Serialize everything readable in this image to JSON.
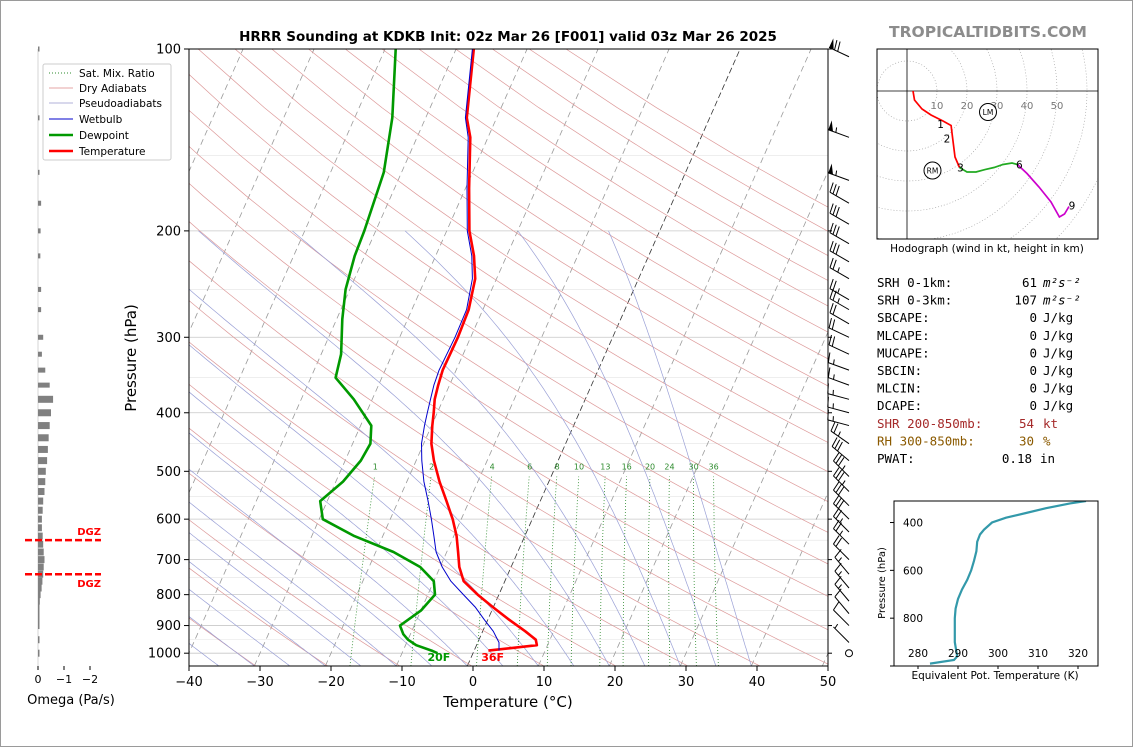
{
  "header": {
    "title": "HRRR Sounding at KDKB Init: 02z Mar 26 [F001] valid 03z Mar 26 2025",
    "brand": "TROPICALTIDBITS.COM"
  },
  "colors": {
    "temperature": "#ff0000",
    "dewpoint": "#009900",
    "wetbulb": "#0000cc",
    "dgz": "#ff0000",
    "thetae": "#3399aa",
    "brand": "#8c8c8c",
    "shr": "#a52a2a",
    "rh": "#8b5a00"
  },
  "chart_data": [
    {
      "type": "line",
      "name": "skewt",
      "title": "HRRR Sounding at KDKB Init: 02z Mar 26 [F001] valid 03z Mar 26 2025",
      "xlabel": "Temperature (°C)",
      "ylabel": "Pressure (hPa)",
      "xlim": [
        -40,
        50
      ],
      "ylim": [
        1050,
        100
      ],
      "y_scale": "log",
      "x_ticks": [
        -40,
        -30,
        -20,
        -10,
        0,
        10,
        20,
        30,
        40,
        50
      ],
      "y_ticks": [
        100,
        200,
        300,
        400,
        500,
        600,
        700,
        800,
        900,
        1000
      ],
      "grid": true,
      "legend_position": "top-left",
      "legend": [
        "Sat. Mix. Ratio",
        "Dry Adiabats",
        "Pseudoadiabats",
        "Wetbulb",
        "Dewpoint",
        "Temperature"
      ],
      "mixing_ratio_labels": [
        "1",
        "2",
        "4",
        "6",
        "8",
        "10",
        "13",
        "16",
        "20",
        "24",
        "30",
        "36"
      ],
      "surface_labels": {
        "temperature": "36F",
        "dewpoint": "20F"
      },
      "series": [
        {
          "name": "Temperature",
          "p": [
            990,
            970,
            950,
            920,
            880,
            840,
            800,
            760,
            720,
            680,
            640,
            600,
            560,
            520,
            480,
            450,
            420,
            400,
            380,
            360,
            340,
            300,
            270,
            240,
            220,
            200,
            170,
            140,
            130,
            100
          ],
          "t": [
            2,
            8.5,
            8,
            6,
            3,
            0,
            -3,
            -5.8,
            -7.3,
            -8.4,
            -9.6,
            -11.2,
            -13.2,
            -15.4,
            -17.5,
            -18.9,
            -19.9,
            -20.5,
            -21.2,
            -21.6,
            -21.9,
            -21.8,
            -22,
            -23,
            -24.6,
            -26.8,
            -29.5,
            -32.5,
            -34.2,
            -37.5
          ]
        },
        {
          "name": "Dewpoint",
          "p": [
            1000,
            990,
            970,
            950,
            930,
            900,
            850,
            800,
            760,
            720,
            680,
            640,
            600,
            560,
            520,
            480,
            450,
            420,
            380,
            350,
            320,
            280,
            250,
            220,
            200,
            160,
            130,
            100
          ],
          "t": [
            -5,
            -6,
            -8.5,
            -10,
            -11,
            -12,
            -10,
            -9,
            -10,
            -12.8,
            -17.5,
            -24,
            -29.5,
            -31,
            -29,
            -27.8,
            -27.5,
            -28.5,
            -32.6,
            -36.5,
            -37.2,
            -39.2,
            -40.6,
            -41.4,
            -41.6,
            -42.5,
            -44.7,
            -48.5
          ]
        },
        {
          "name": "Wetbulb",
          "p": [
            990,
            960,
            920,
            880,
            840,
            800,
            760,
            720,
            680,
            640,
            600,
            560,
            520,
            480,
            450,
            420,
            400,
            380,
            360,
            340,
            300,
            270,
            240,
            220,
            200,
            170,
            140,
            130,
            100
          ],
          "t": [
            3.5,
            3,
            1.5,
            -0.5,
            -2.5,
            -5,
            -7.6,
            -9.7,
            -11.5,
            -12.8,
            -14.2,
            -15.8,
            -17.6,
            -19.2,
            -20.3,
            -21,
            -21.4,
            -21.8,
            -22.2,
            -22.4,
            -22.2,
            -22.3,
            -23.4,
            -24.9,
            -27.1,
            -29.8,
            -32.8,
            -34.4,
            -37.7
          ]
        }
      ]
    },
    {
      "type": "bar",
      "name": "omega",
      "xlabel": "Omega (Pa/s)",
      "x_ticks": [
        0,
        -1,
        -2
      ],
      "xlim": [
        0.5,
        -2.5
      ],
      "dgz_label": "DGZ",
      "dgz_levels_hpa": [
        650,
        740
      ],
      "p": [
        100,
        130,
        160,
        180,
        200,
        220,
        250,
        270,
        300,
        320,
        340,
        360,
        380,
        400,
        420,
        440,
        460,
        480,
        500,
        520,
        540,
        560,
        580,
        600,
        620,
        640,
        660,
        680,
        700,
        720,
        740,
        760,
        780,
        800,
        820,
        840,
        860,
        880,
        900,
        950,
        1000
      ],
      "values": [
        -0.02,
        -0.02,
        -0.05,
        -0.12,
        -0.1,
        -0.09,
        -0.12,
        -0.12,
        -0.2,
        -0.15,
        -0.28,
        -0.45,
        -0.58,
        -0.5,
        -0.45,
        -0.41,
        -0.38,
        -0.35,
        -0.3,
        -0.28,
        -0.25,
        -0.2,
        -0.18,
        -0.15,
        -0.15,
        -0.18,
        -0.2,
        -0.22,
        -0.25,
        -0.22,
        -0.2,
        -0.17,
        -0.14,
        -0.1,
        -0.07,
        -0.05,
        -0.03,
        -0.02,
        -0.02,
        -0.05,
        -0.02
      ]
    },
    {
      "type": "line",
      "name": "hodograph",
      "caption": "Hodograph (wind in kt, height in km)",
      "ring_labels": [
        "10",
        "20",
        "30",
        "40",
        "50"
      ],
      "point_labels": [
        "1",
        "2",
        "3",
        "6",
        "9"
      ],
      "markers": [
        "LM",
        "RM"
      ],
      "segments": [
        {
          "color": "#ff0000",
          "u": [
            2,
            2.5,
            5,
            8,
            12,
            14.7,
            15,
            15.5,
            16,
            17.5
          ],
          "v": [
            0,
            -3,
            -6,
            -8,
            -10,
            -11.5,
            -14,
            -18,
            -22,
            -25.5
          ]
        },
        {
          "color": "#22aa22",
          "u": [
            17.5,
            20,
            23,
            26,
            29,
            32,
            35,
            36.8
          ],
          "v": [
            -25.5,
            -27,
            -27,
            -26.2,
            -25.5,
            -24.5,
            -24,
            -24.5
          ]
        },
        {
          "color": "#cc00cc",
          "u": [
            36.8,
            40,
            44,
            48,
            50.8,
            52.5,
            54
          ],
          "v": [
            -24.5,
            -27.5,
            -32,
            -37,
            -42,
            -41,
            -38.5
          ]
        }
      ],
      "lm_uv": [
        27,
        -7
      ],
      "rm_uv": [
        8.5,
        -26.5
      ]
    },
    {
      "type": "line",
      "name": "theta-e",
      "xlabel": "Equivalent Pot. Temperature (K)",
      "ylabel": "Pressure (hPa)",
      "xlim": [
        274,
        325
      ],
      "ylim": [
        1000,
        310
      ],
      "x_ticks": [
        280,
        290,
        300,
        310,
        320
      ],
      "y_ticks": [
        400,
        600,
        800,
        1000
      ],
      "y_tick_labels": [
        "400",
        "600",
        "800",
        ""
      ],
      "p": [
        990,
        975,
        960,
        930,
        900,
        850,
        800,
        760,
        720,
        680,
        640,
        600,
        560,
        520,
        480,
        450,
        430,
        400,
        380,
        360,
        340,
        320,
        310
      ],
      "theta": [
        283,
        289,
        289.8,
        289.5,
        289.2,
        289.2,
        289.2,
        289.4,
        290,
        291,
        292.3,
        293.3,
        294,
        294.6,
        294.8,
        295.5,
        296.5,
        298.5,
        302,
        307,
        312,
        318,
        322
      ]
    }
  ],
  "indices": [
    {
      "label": "SRH 0-1km:",
      "value": "61",
      "unit": "m²s⁻²",
      "color": "#000000"
    },
    {
      "label": "SRH 0-3km:",
      "value": "107",
      "unit": "m²s⁻²",
      "color": "#000000"
    },
    {
      "label": "SBCAPE:",
      "value": "0",
      "unit": "J/kg",
      "color": "#000000"
    },
    {
      "label": "MLCAPE:",
      "value": "0",
      "unit": "J/kg",
      "color": "#000000"
    },
    {
      "label": "MUCAPE:",
      "value": "0",
      "unit": "J/kg",
      "color": "#000000"
    },
    {
      "label": "SBCIN:",
      "value": "0",
      "unit": "J/kg",
      "color": "#000000"
    },
    {
      "label": "MLCIN:",
      "value": "0",
      "unit": "J/kg",
      "color": "#000000"
    },
    {
      "label": "DCAPE:",
      "value": "0",
      "unit": "J/kg",
      "color": "#000000"
    },
    {
      "label": "SHR 200-850mb:",
      "value": "54",
      "unit": "kt",
      "color": "#a52a2a"
    },
    {
      "label": "RH 300-850mb:",
      "value": "30",
      "unit": "%",
      "color": "#8b5a00"
    },
    {
      "label": "PWAT:",
      "value": "0.18",
      "unit": "in",
      "color": "#000000"
    }
  ],
  "wind_barbs": {
    "p": [
      103,
      140,
      165,
      180,
      195,
      210,
      225,
      240,
      260,
      270,
      285,
      300,
      320,
      340,
      360,
      380,
      400,
      420,
      450,
      480,
      510,
      540,
      570,
      600,
      630,
      660,
      700,
      740,
      780,
      820,
      860,
      900,
      960,
      1000
    ],
    "speed_kt": [
      70,
      55,
      55,
      30,
      30,
      30,
      30,
      25,
      25,
      25,
      20,
      20,
      20,
      15,
      15,
      15,
      15,
      15,
      25,
      30,
      35,
      35,
      30,
      30,
      25,
      25,
      20,
      15,
      15,
      15,
      10,
      10,
      5,
      0
    ],
    "dir_deg": [
      295,
      290,
      290,
      300,
      300,
      300,
      300,
      300,
      300,
      300,
      300,
      295,
      295,
      290,
      290,
      285,
      285,
      285,
      305,
      310,
      315,
      315,
      315,
      315,
      315,
      315,
      315,
      320,
      320,
      320,
      320,
      315,
      315,
      0
    ]
  }
}
